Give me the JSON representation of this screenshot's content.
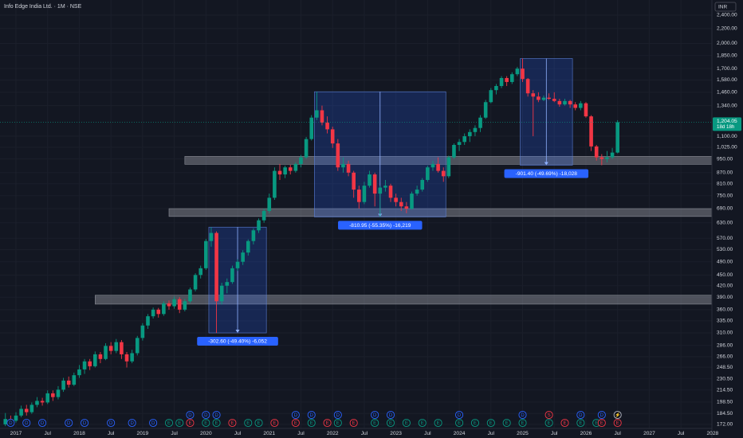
{
  "chart_data": {
    "type": "candlestick",
    "title": "Info Edge India Ltd. · 1M · NSE",
    "currency": "INR",
    "log_scale": true,
    "grid": true,
    "up_color": "#089981",
    "down_color": "#f23645",
    "x_start": "2016-11",
    "ohlc": [
      [
        172,
        185,
        170,
        178
      ],
      [
        178,
        182,
        172,
        176
      ],
      [
        176,
        186,
        174,
        182
      ],
      [
        182,
        194,
        180,
        190
      ],
      [
        190,
        195,
        182,
        186
      ],
      [
        186,
        198,
        184,
        195
      ],
      [
        195,
        205,
        192,
        200
      ],
      [
        200,
        204,
        194,
        198
      ],
      [
        198,
        214,
        196,
        210
      ],
      [
        210,
        214,
        200,
        205
      ],
      [
        205,
        220,
        202,
        215
      ],
      [
        215,
        232,
        212,
        228
      ],
      [
        228,
        234,
        218,
        222
      ],
      [
        222,
        240,
        220,
        236
      ],
      [
        236,
        252,
        232,
        245
      ],
      [
        245,
        262,
        238,
        258
      ],
      [
        258,
        262,
        244,
        250
      ],
      [
        250,
        275,
        248,
        270
      ],
      [
        270,
        274,
        255,
        262
      ],
      [
        262,
        290,
        260,
        285
      ],
      [
        285,
        292,
        270,
        276
      ],
      [
        276,
        298,
        272,
        292
      ],
      [
        292,
        296,
        262,
        270
      ],
      [
        270,
        274,
        248,
        258
      ],
      [
        258,
        278,
        255,
        272
      ],
      [
        272,
        304,
        268,
        300
      ],
      [
        300,
        330,
        295,
        325
      ],
      [
        325,
        350,
        318,
        345
      ],
      [
        345,
        365,
        340,
        360
      ],
      [
        360,
        364,
        342,
        350
      ],
      [
        350,
        380,
        346,
        375
      ],
      [
        375,
        382,
        360,
        368
      ],
      [
        368,
        392,
        362,
        385
      ],
      [
        385,
        390,
        352,
        360
      ],
      [
        360,
        386,
        356,
        380
      ],
      [
        380,
        415,
        376,
        410
      ],
      [
        410,
        455,
        405,
        450
      ],
      [
        450,
        478,
        440,
        470
      ],
      [
        470,
        568,
        465,
        560
      ],
      [
        560,
        612.5,
        540,
        590
      ],
      [
        590,
        596,
        309.9,
        380
      ],
      [
        380,
        428,
        372,
        420
      ],
      [
        420,
        440,
        400,
        430
      ],
      [
        430,
        478,
        425,
        470
      ],
      [
        470,
        498,
        462,
        490
      ],
      [
        490,
        528,
        480,
        520
      ],
      [
        520,
        566,
        510,
        560
      ],
      [
        560,
        608,
        548,
        600
      ],
      [
        600,
        648,
        590,
        640
      ],
      [
        640,
        690,
        630,
        680
      ],
      [
        680,
        760,
        670,
        740
      ],
      [
        740,
        900,
        730,
        880
      ],
      [
        880,
        920,
        830,
        860
      ],
      [
        860,
        910,
        840,
        900
      ],
      [
        900,
        915,
        860,
        880
      ],
      [
        880,
        930,
        870,
        920
      ],
      [
        920,
        975,
        900,
        960
      ],
      [
        960,
        1095,
        950,
        1080
      ],
      [
        1080,
        1260,
        1070,
        1240
      ],
      [
        1240,
        1465.1,
        1220,
        1300
      ],
      [
        1300,
        1340,
        1180,
        1200
      ],
      [
        1200,
        1250,
        1120,
        1150
      ],
      [
        1150,
        1170,
        1020,
        1050
      ],
      [
        1050,
        1080,
        880,
        900
      ],
      [
        900,
        960,
        870,
        920
      ],
      [
        920,
        940,
        850,
        870
      ],
      [
        870,
        880,
        740,
        780
      ],
      [
        780,
        800,
        690,
        720
      ],
      [
        720,
        820,
        710,
        800
      ],
      [
        800,
        880,
        790,
        860
      ],
      [
        860,
        870,
        700,
        760
      ],
      [
        760,
        800,
        654.15,
        790
      ],
      [
        790,
        830,
        770,
        800
      ],
      [
        800,
        810,
        720,
        740
      ],
      [
        740,
        760,
        700,
        720
      ],
      [
        720,
        740,
        680,
        700
      ],
      [
        700,
        720,
        670,
        690
      ],
      [
        690,
        770,
        685,
        760
      ],
      [
        760,
        800,
        750,
        780
      ],
      [
        780,
        840,
        770,
        830
      ],
      [
        830,
        910,
        820,
        900
      ],
      [
        900,
        940,
        880,
        920
      ],
      [
        920,
        960,
        870,
        880
      ],
      [
        880,
        900,
        820,
        850
      ],
      [
        850,
        970,
        840,
        960
      ],
      [
        960,
        1050,
        950,
        1040
      ],
      [
        1040,
        1080,
        1000,
        1060
      ],
      [
        1060,
        1120,
        1040,
        1100
      ],
      [
        1100,
        1150,
        1060,
        1130
      ],
      [
        1130,
        1180,
        1100,
        1160
      ],
      [
        1160,
        1260,
        1130,
        1240
      ],
      [
        1240,
        1390,
        1230,
        1370
      ],
      [
        1370,
        1500,
        1360,
        1480
      ],
      [
        1480,
        1540,
        1440,
        1520
      ],
      [
        1520,
        1620,
        1500,
        1600
      ],
      [
        1600,
        1620,
        1520,
        1560
      ],
      [
        1560,
        1660,
        1540,
        1640
      ],
      [
        1640,
        1720,
        1620,
        1700
      ],
      [
        1700,
        1814,
        1560,
        1590
      ],
      [
        1590,
        1600,
        1420,
        1450
      ],
      [
        1450,
        1480,
        1100,
        1420
      ],
      [
        1420,
        1460,
        1370,
        1390
      ],
      [
        1390,
        1430,
        1380,
        1410
      ],
      [
        1410,
        1450,
        1390,
        1400
      ],
      [
        1400,
        1460,
        1370,
        1380
      ],
      [
        1380,
        1400,
        1330,
        1350
      ],
      [
        1350,
        1400,
        1340,
        1380
      ],
      [
        1380,
        1390,
        1320,
        1350
      ],
      [
        1350,
        1370,
        1300,
        1320
      ],
      [
        1320,
        1380,
        1300,
        1360
      ],
      [
        1360,
        1370,
        1240,
        1250
      ],
      [
        1250,
        1260,
        1000,
        1030
      ],
      [
        1030,
        1040,
        940,
        960
      ],
      [
        960,
        980,
        912.6,
        950
      ],
      [
        950,
        1000,
        930,
        960
      ],
      [
        960,
        1020,
        950,
        990
      ],
      [
        990,
        1220,
        985,
        1204.05
      ]
    ],
    "ylim": [
      167.5,
      2645
    ],
    "yticks": [
      {
        "value": 2400,
        "label": "2,400.00"
      },
      {
        "value": 2200,
        "label": "2,200.00"
      },
      {
        "value": 2000,
        "label": "2,000.00"
      },
      {
        "value": 1850,
        "label": "1,850.00"
      },
      {
        "value": 1700,
        "label": "1,700.00"
      },
      {
        "value": 1580,
        "label": "1,580.00"
      },
      {
        "value": 1460,
        "label": "1,460.00"
      },
      {
        "value": 1340,
        "label": "1,340.00"
      },
      {
        "value": 1100,
        "label": "1,100.00"
      },
      {
        "value": 1025,
        "label": "1,025.00"
      },
      {
        "value": 950,
        "label": "950.00"
      },
      {
        "value": 870,
        "label": "870.00"
      },
      {
        "value": 810,
        "label": "810.00"
      },
      {
        "value": 750,
        "label": "750.00"
      },
      {
        "value": 690,
        "label": "690.00"
      },
      {
        "value": 630,
        "label": "630.00"
      },
      {
        "value": 570,
        "label": "570.00"
      },
      {
        "value": 530,
        "label": "530.00"
      },
      {
        "value": 490,
        "label": "490.00"
      },
      {
        "value": 450,
        "label": "450.00"
      },
      {
        "value": 420,
        "label": "420.00"
      },
      {
        "value": 390,
        "label": "390.00"
      },
      {
        "value": 360,
        "label": "360.00"
      },
      {
        "value": 335,
        "label": "335.00"
      },
      {
        "value": 310,
        "label": "310.00"
      },
      {
        "value": 286,
        "label": "286.00"
      },
      {
        "value": 266,
        "label": "266.00"
      },
      {
        "value": 248.5,
        "label": "248.50"
      },
      {
        "value": 230.5,
        "label": "230.50"
      },
      {
        "value": 214.5,
        "label": "214.50"
      },
      {
        "value": 198.5,
        "label": "198.50"
      },
      {
        "value": 184.5,
        "label": "184.50"
      },
      {
        "value": 172,
        "label": "172.00"
      }
    ],
    "xticks": [
      {
        "value": "2017-01",
        "label": "2017"
      },
      {
        "value": "2017-07",
        "label": "Jul"
      },
      {
        "value": "2018-01",
        "label": "2018"
      },
      {
        "value": "2018-07",
        "label": "Jul"
      },
      {
        "value": "2019-01",
        "label": "2019"
      },
      {
        "value": "2019-07",
        "label": "Jul"
      },
      {
        "value": "2020-01",
        "label": "2020"
      },
      {
        "value": "2020-07",
        "label": "Jul"
      },
      {
        "value": "2021-01",
        "label": "2021"
      },
      {
        "value": "2021-07",
        "label": "Jul"
      },
      {
        "value": "2022-01",
        "label": "2022"
      },
      {
        "value": "2022-07",
        "label": "Jul"
      },
      {
        "value": "2023-01",
        "label": "2023"
      },
      {
        "value": "2023-07",
        "label": "Jul"
      },
      {
        "value": "2024-01",
        "label": "2024"
      },
      {
        "value": "2024-07",
        "label": "Jul"
      },
      {
        "value": "2025-01",
        "label": "2025"
      },
      {
        "value": "2025-07",
        "label": "Jul"
      },
      {
        "value": "2026-01",
        "label": "2026"
      },
      {
        "value": "2026-07",
        "label": "Jul"
      },
      {
        "value": "2027-01",
        "label": "2027"
      },
      {
        "value": "2027-07",
        "label": "Jul"
      },
      {
        "value": "2028-01",
        "label": "2028"
      }
    ],
    "last_price": {
      "value": 1204.05,
      "label": "1,204.05",
      "countdown": "18d 18h"
    },
    "zones": [
      {
        "start": "2019-09",
        "top": 966,
        "bottom": 918
      },
      {
        "start": "2019-06",
        "top": 690,
        "bottom": 656
      },
      {
        "start": "2018-04",
        "top": 395,
        "bottom": 373
      }
    ],
    "measures": [
      {
        "from": "2020-02",
        "to": "2020-12",
        "high": 612.5,
        "low": 309.9,
        "label": "-302.60 (-49.40%) -6,052"
      },
      {
        "from": "2021-10",
        "to": "2023-10",
        "high": 1465.1,
        "low": 654.15,
        "label": "-810.95 (-55.35%) -16,219"
      },
      {
        "from": "2025-01",
        "to": "2025-10",
        "high": 1814,
        "low": 912.6,
        "label": "-901.40 (-49.69%) -18,028"
      }
    ],
    "events": [
      {
        "x": "2016-12",
        "label": "D",
        "color": "#2962ff"
      },
      {
        "x": "2017-03",
        "label": "D",
        "color": "#2962ff"
      },
      {
        "x": "2017-06",
        "label": "D",
        "color": "#2962ff"
      },
      {
        "x": "2017-11",
        "label": "D",
        "color": "#2962ff"
      },
      {
        "x": "2018-02",
        "label": "D",
        "color": "#2962ff"
      },
      {
        "x": "2018-07",
        "label": "D",
        "color": "#2962ff"
      },
      {
        "x": "2018-11",
        "label": "D",
        "color": "#2962ff"
      },
      {
        "x": "2019-03",
        "label": "D",
        "color": "#2962ff"
      },
      {
        "x": "2019-06",
        "label": "E",
        "color": "#089981"
      },
      {
        "x": "2019-08",
        "label": "E",
        "color": "#089981"
      },
      {
        "x": "2019-10",
        "label": "D",
        "color": "#2962ff"
      },
      {
        "x": "2019-10",
        "label": "E",
        "color": "#f23645"
      },
      {
        "x": "2020-01",
        "label": "D",
        "color": "#2962ff"
      },
      {
        "x": "2020-01",
        "label": "E",
        "color": "#089981"
      },
      {
        "x": "2020-03",
        "label": "D",
        "color": "#2962ff"
      },
      {
        "x": "2020-03",
        "label": "E",
        "color": "#089981"
      },
      {
        "x": "2020-06",
        "label": "E",
        "color": "#f23645"
      },
      {
        "x": "2020-09",
        "label": "E",
        "color": "#089981"
      },
      {
        "x": "2020-11",
        "label": "E",
        "color": "#089981"
      },
      {
        "x": "2021-02",
        "label": "E",
        "color": "#f23645"
      },
      {
        "x": "2021-06",
        "label": "D",
        "color": "#2962ff"
      },
      {
        "x": "2021-06",
        "label": "E",
        "color": "#f23645"
      },
      {
        "x": "2021-09",
        "label": "D",
        "color": "#2962ff"
      },
      {
        "x": "2021-09",
        "label": "E",
        "color": "#089981"
      },
      {
        "x": "2021-12",
        "label": "E",
        "color": "#f23645"
      },
      {
        "x": "2022-02",
        "label": "D",
        "color": "#2962ff"
      },
      {
        "x": "2022-02",
        "label": "E",
        "color": "#089981"
      },
      {
        "x": "2022-05",
        "label": "E",
        "color": "#f23645"
      },
      {
        "x": "2022-09",
        "label": "D",
        "color": "#2962ff"
      },
      {
        "x": "2022-09",
        "label": "E",
        "color": "#089981"
      },
      {
        "x": "2022-12",
        "label": "D",
        "color": "#2962ff"
      },
      {
        "x": "2022-12",
        "label": "E",
        "color": "#089981"
      },
      {
        "x": "2023-03",
        "label": "E",
        "color": "#089981"
      },
      {
        "x": "2023-06",
        "label": "E",
        "color": "#089981"
      },
      {
        "x": "2023-09",
        "label": "E",
        "color": "#089981"
      },
      {
        "x": "2024-01",
        "label": "D",
        "color": "#2962ff"
      },
      {
        "x": "2024-01",
        "label": "E",
        "color": "#089981"
      },
      {
        "x": "2024-04",
        "label": "E",
        "color": "#089981"
      },
      {
        "x": "2024-07",
        "label": "E",
        "color": "#089981"
      },
      {
        "x": "2024-10",
        "label": "E",
        "color": "#089981"
      },
      {
        "x": "2025-01",
        "label": "D",
        "color": "#2962ff"
      },
      {
        "x": "2025-01",
        "label": "E",
        "color": "#089981"
      },
      {
        "x": "2025-06",
        "label": "S",
        "color": "#f23645"
      },
      {
        "x": "2025-06",
        "label": "E",
        "color": "#089981"
      },
      {
        "x": "2025-09",
        "label": "E",
        "color": "#f23645"
      },
      {
        "x": "2025-12",
        "label": "D",
        "color": "#2962ff"
      },
      {
        "x": "2025-12",
        "label": "E",
        "color": "#089981"
      },
      {
        "x": "2026-03",
        "label": "E",
        "color": "#089981"
      },
      {
        "x": "2026-04",
        "label": "D",
        "color": "#2962ff"
      },
      {
        "x": "2026-04",
        "label": "E",
        "color": "#f23645"
      },
      {
        "x": "2026-07",
        "label": "⚡",
        "color": "#b2b5be"
      },
      {
        "x": "2026-07",
        "label": "E",
        "color": "#f23645"
      }
    ]
  }
}
